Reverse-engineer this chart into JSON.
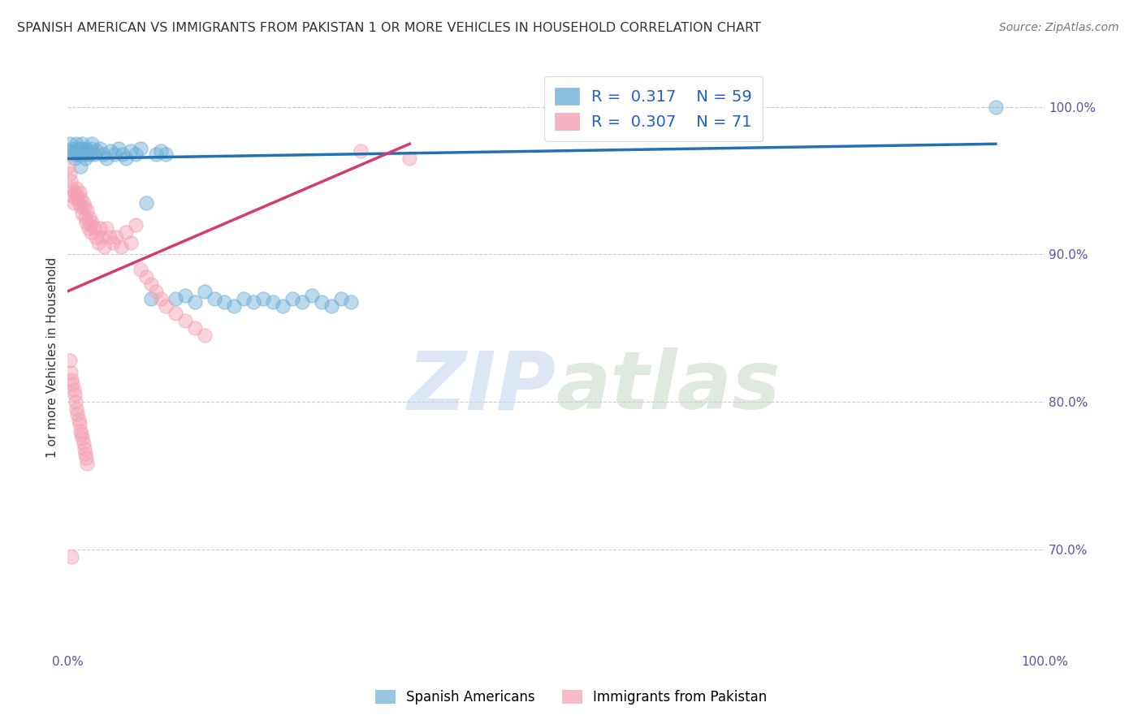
{
  "title": "SPANISH AMERICAN VS IMMIGRANTS FROM PAKISTAN 1 OR MORE VEHICLES IN HOUSEHOLD CORRELATION CHART",
  "source": "Source: ZipAtlas.com",
  "ylabel": "1 or more Vehicles in Household",
  "xlim": [
    0,
    1.0
  ],
  "ylim": [
    0.63,
    1.03
  ],
  "ytick_positions": [
    0.7,
    0.8,
    0.9,
    1.0
  ],
  "ytick_labels": [
    "70.0%",
    "80.0%",
    "90.0%",
    "100.0%"
  ],
  "R_blue": 0.317,
  "N_blue": 59,
  "R_pink": 0.307,
  "N_pink": 71,
  "legend_label_blue": "Spanish Americans",
  "legend_label_pink": "Immigrants from Pakistan",
  "blue_color": "#6baed6",
  "pink_color": "#f4a0b5",
  "blue_line_color": "#2171b5",
  "pink_line_color": "#d63b6e",
  "watermark_zip": "ZIP",
  "watermark_atlas": "atlas",
  "blue_scatter_x": [
    0.002,
    0.003,
    0.005,
    0.006,
    0.007,
    0.008,
    0.009,
    0.01,
    0.011,
    0.012,
    0.013,
    0.014,
    0.015,
    0.016,
    0.017,
    0.018,
    0.019,
    0.02,
    0.022,
    0.024,
    0.025,
    0.027,
    0.03,
    0.033,
    0.036,
    0.04,
    0.044,
    0.048,
    0.052,
    0.056,
    0.06,
    0.065,
    0.07,
    0.075,
    0.08,
    0.085,
    0.09,
    0.095,
    0.1,
    0.11,
    0.12,
    0.13,
    0.14,
    0.15,
    0.16,
    0.17,
    0.18,
    0.19,
    0.2,
    0.21,
    0.22,
    0.23,
    0.24,
    0.25,
    0.26,
    0.27,
    0.28,
    0.29,
    0.95
  ],
  "blue_scatter_y": [
    0.975,
    0.97,
    0.972,
    0.968,
    0.965,
    0.97,
    0.975,
    0.968,
    0.972,
    0.968,
    0.96,
    0.972,
    0.975,
    0.97,
    0.968,
    0.965,
    0.972,
    0.97,
    0.968,
    0.972,
    0.975,
    0.968,
    0.97,
    0.972,
    0.968,
    0.965,
    0.97,
    0.968,
    0.972,
    0.968,
    0.965,
    0.97,
    0.968,
    0.972,
    0.935,
    0.87,
    0.968,
    0.97,
    0.968,
    0.87,
    0.872,
    0.868,
    0.875,
    0.87,
    0.868,
    0.865,
    0.87,
    0.868,
    0.87,
    0.868,
    0.865,
    0.87,
    0.868,
    0.872,
    0.868,
    0.865,
    0.87,
    0.868,
    1.0
  ],
  "pink_scatter_x": [
    0.001,
    0.002,
    0.003,
    0.004,
    0.005,
    0.006,
    0.007,
    0.008,
    0.009,
    0.01,
    0.011,
    0.012,
    0.013,
    0.014,
    0.015,
    0.016,
    0.017,
    0.018,
    0.019,
    0.02,
    0.021,
    0.022,
    0.023,
    0.024,
    0.025,
    0.027,
    0.029,
    0.031,
    0.033,
    0.035,
    0.037,
    0.04,
    0.043,
    0.046,
    0.05,
    0.055,
    0.06,
    0.065,
    0.07,
    0.075,
    0.08,
    0.085,
    0.09,
    0.095,
    0.1,
    0.11,
    0.12,
    0.13,
    0.14,
    0.002,
    0.003,
    0.004,
    0.005,
    0.006,
    0.007,
    0.008,
    0.009,
    0.01,
    0.011,
    0.012,
    0.013,
    0.014,
    0.015,
    0.016,
    0.017,
    0.018,
    0.019,
    0.02,
    0.3,
    0.35,
    0.004
  ],
  "pink_scatter_y": [
    0.96,
    0.955,
    0.95,
    0.945,
    0.94,
    0.935,
    0.942,
    0.938,
    0.945,
    0.94,
    0.935,
    0.942,
    0.938,
    0.932,
    0.928,
    0.935,
    0.932,
    0.925,
    0.922,
    0.93,
    0.918,
    0.925,
    0.92,
    0.915,
    0.922,
    0.918,
    0.912,
    0.908,
    0.918,
    0.912,
    0.905,
    0.918,
    0.912,
    0.908,
    0.912,
    0.905,
    0.915,
    0.908,
    0.92,
    0.89,
    0.885,
    0.88,
    0.875,
    0.87,
    0.865,
    0.86,
    0.855,
    0.85,
    0.845,
    0.828,
    0.82,
    0.815,
    0.812,
    0.808,
    0.805,
    0.8,
    0.795,
    0.792,
    0.788,
    0.785,
    0.78,
    0.778,
    0.775,
    0.772,
    0.768,
    0.765,
    0.762,
    0.758,
    0.97,
    0.965,
    0.695
  ]
}
